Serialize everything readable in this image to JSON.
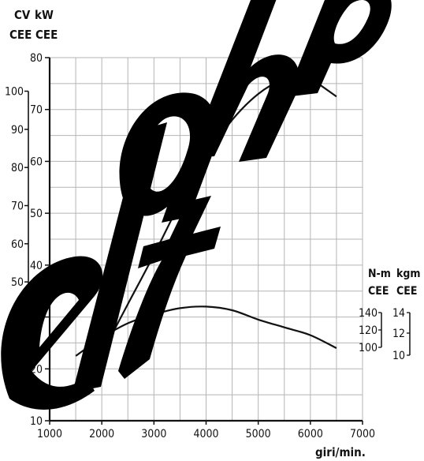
{
  "chart_data": {
    "type": "line",
    "xlabel": "giri/min.",
    "xlim": [
      1000,
      7000
    ],
    "x_ticks": [
      1000,
      2000,
      3000,
      4000,
      5000,
      6000,
      7000
    ],
    "kw_axis": {
      "unit": "kW",
      "standard": "CEE",
      "range": [
        10,
        80
      ],
      "ticks": [
        10,
        20,
        30,
        40,
        50,
        60,
        70,
        80
      ]
    },
    "cv_axis": {
      "unit": "CV",
      "standard": "CEE",
      "ticks": [
        20,
        30,
        40,
        50,
        60,
        70,
        80,
        90,
        100
      ]
    },
    "nm_axis": {
      "unit": "N-m",
      "standard": "CEE",
      "ticks": [
        100,
        120,
        140
      ]
    },
    "kgm_axis": {
      "unit": "kgm",
      "standard": "CEE",
      "ticks": [
        10,
        12,
        14
      ]
    },
    "grid": true,
    "series": [
      {
        "id": "power",
        "x": [
          1500,
          2000,
          2500,
          3000,
          3500,
          4000,
          4500,
          5000,
          5500,
          5800,
          6000,
          6500
        ],
        "y": [
          14,
          23,
          32.5,
          42,
          52,
          61,
          68,
          73,
          76,
          76.8,
          76,
          72.5
        ]
      },
      {
        "id": "torque",
        "x": [
          1500,
          2000,
          2500,
          3000,
          3500,
          4000,
          4500,
          5000,
          5500,
          6000,
          6500
        ],
        "y": [
          22.5,
          26,
          28.8,
          30.5,
          31.7,
          32,
          31.3,
          29.5,
          28,
          26.5,
          24
        ]
      }
    ]
  },
  "labels": {
    "cv_unit": "CV",
    "kw_unit": "kW",
    "cee_1": "CEE",
    "cee_2": "CEE",
    "nm_unit": "N-m",
    "kgm_unit": "kgm",
    "cee_3": "CEE",
    "cee_4": "CEE",
    "xlabel": "giri/min."
  },
  "watermark": "eltahp"
}
